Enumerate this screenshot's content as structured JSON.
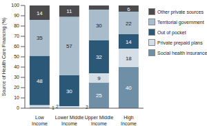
{
  "chart_data": {
    "type": "bar",
    "stacked": true,
    "data_labels": true,
    "legend": "right",
    "grid": false,
    "y_label": "Source of Health Care Financing (%)",
    "categories": [
      "Low Income",
      "Lower Middle Income",
      "Upper Middle Income",
      "High Income"
    ],
    "ylim": [
      0,
      100
    ],
    "yticks": [
      0,
      10,
      20,
      30,
      40,
      50,
      60,
      70,
      80,
      90,
      100
    ],
    "series": [
      {
        "name": "Social health insurance",
        "color": "#6f8fa6",
        "values": [
          1,
          null,
          25,
          40
        ]
      },
      {
        "name": "Private prepaid plans",
        "color": "#d5dee7",
        "values": [
          2,
          2,
          9,
          18
        ]
      },
      {
        "name": "Out of pocket",
        "color": "#2b5877",
        "values": [
          48,
          30,
          32,
          14
        ]
      },
      {
        "name": "Territorial government",
        "color": "#a8bccc",
        "values": [
          35,
          57,
          30,
          22
        ]
      },
      {
        "name": "Other private sources",
        "color": "#4b4b4d",
        "values": [
          14,
          11,
          4,
          6
        ]
      }
    ]
  }
}
